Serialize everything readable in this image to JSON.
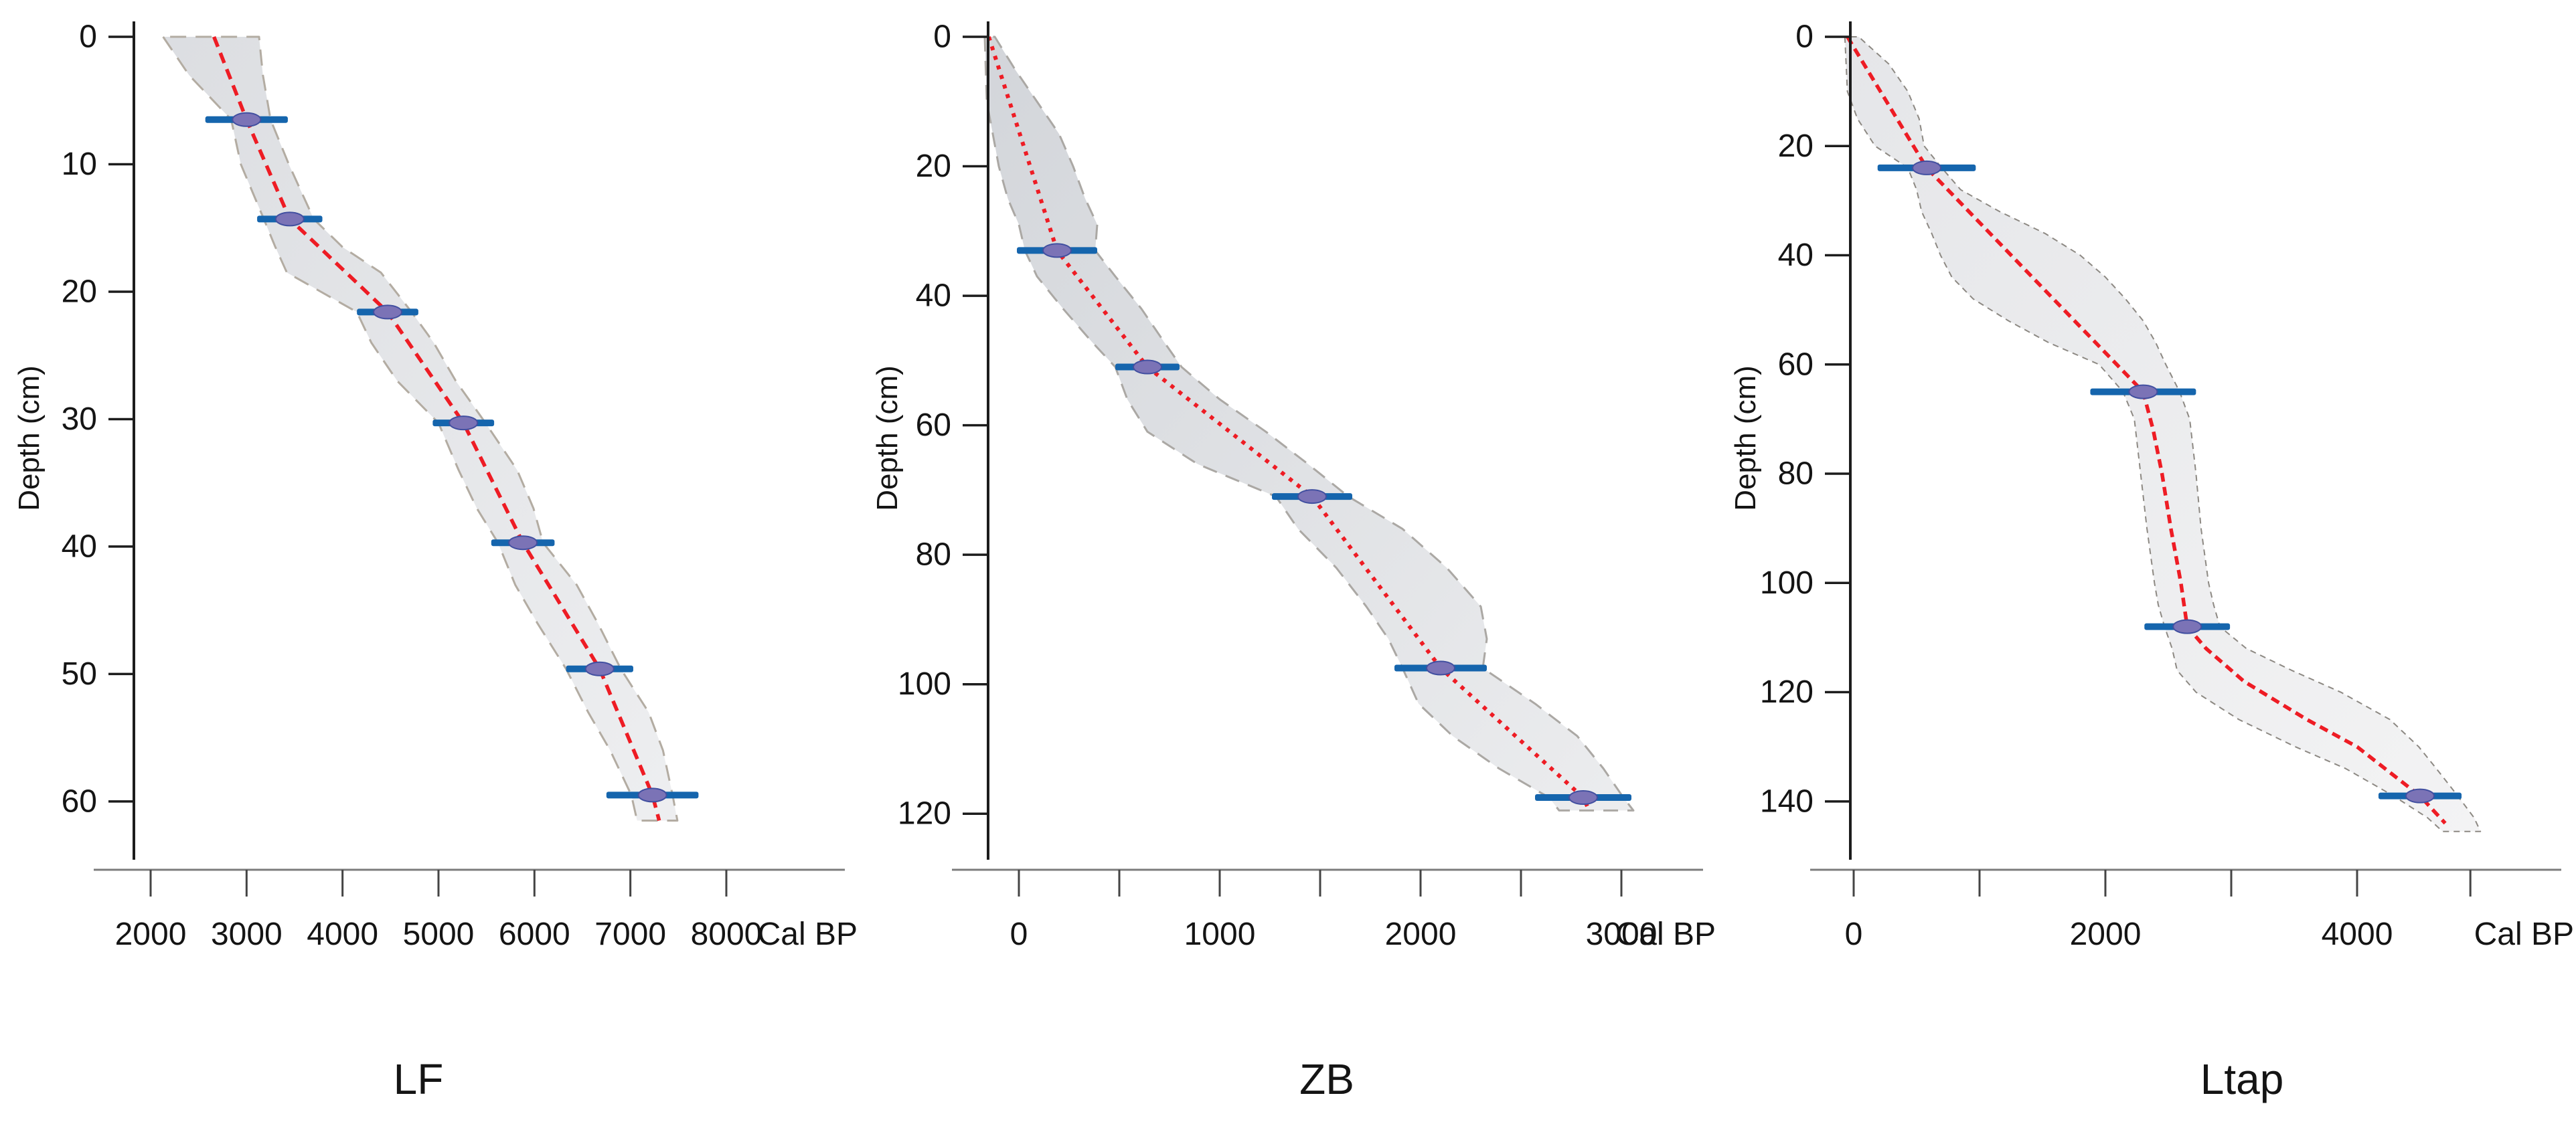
{
  "figure": {
    "ylabel": "Depth (cm)",
    "x_unit_label": "Cal BP"
  },
  "colors": {
    "model_line": "#ee1c24",
    "date_bar": "#1565ad",
    "marker_fill": "#7b73b6",
    "marker_stroke": "#414fa0",
    "axis": "#1c1c1c",
    "x_axis_line": "#7c7c7c",
    "text": "#141414"
  },
  "chart_data": [
    {
      "type": "line",
      "title": "LF",
      "ylabel": "Depth (cm)",
      "xlabel": "Cal BP",
      "xlim": [
        1800,
        8600
      ],
      "ylim": [
        0,
        63
      ],
      "y_ticks": [
        0,
        10,
        20,
        30,
        40,
        50,
        60
      ],
      "x_ticks": [
        {
          "v": 2000,
          "label": "2000"
        },
        {
          "v": 3000,
          "label": "3000"
        },
        {
          "v": 4000,
          "label": "4000"
        },
        {
          "v": 5000,
          "label": "5000"
        },
        {
          "v": 6000,
          "label": "6000"
        },
        {
          "v": 7000,
          "label": "7000"
        },
        {
          "v": 8000,
          "label": "8000"
        }
      ],
      "style": {
        "model_dash": "16 10",
        "model_width": 5.5,
        "border_color": "#b3aca2",
        "border_dash": "24 14",
        "border_width": 3,
        "fill_from": "#d9dbdf",
        "fill_to": "#ecedef"
      },
      "model_points": [
        [
          2660,
          0
        ],
        [
          3000,
          6.5
        ],
        [
          3450,
          14.3
        ],
        [
          4470,
          21.6
        ],
        [
          5260,
          30.3
        ],
        [
          5880,
          39.7
        ],
        [
          6680,
          49.6
        ],
        [
          7230,
          59.5
        ],
        [
          7300,
          61.5
        ]
      ],
      "envelope": {
        "depth": [
          0,
          3,
          6.5,
          10,
          14.3,
          16.5,
          18.5,
          21.6,
          24,
          27,
          30.3,
          34,
          37,
          39.7,
          43,
          46,
          49.6,
          53,
          56,
          59.5,
          61.5
        ],
        "age_min": [
          2130,
          2400,
          2840,
          2940,
          3180,
          3300,
          3420,
          4150,
          4300,
          4570,
          5000,
          5210,
          5400,
          5620,
          5800,
          6030,
          6330,
          6560,
          6790,
          7010,
          7070
        ],
        "age_max": [
          3130,
          3170,
          3250,
          3440,
          3700,
          4000,
          4400,
          4720,
          4950,
          5180,
          5490,
          5820,
          5990,
          6090,
          6440,
          6660,
          6900,
          7190,
          7340,
          7440,
          7490
        ]
      },
      "dates": [
        {
          "depth": 6.5,
          "age": 3000,
          "err": 430
        },
        {
          "depth": 14.3,
          "age": 3450,
          "err": 340
        },
        {
          "depth": 21.6,
          "age": 4470,
          "err": 320
        },
        {
          "depth": 30.3,
          "age": 5260,
          "err": 320
        },
        {
          "depth": 39.7,
          "age": 5880,
          "err": 330
        },
        {
          "depth": 49.6,
          "age": 6680,
          "err": 350
        },
        {
          "depth": 59.5,
          "age": 7230,
          "err": 480
        }
      ]
    },
    {
      "type": "line",
      "title": "ZB",
      "ylabel": "Depth (cm)",
      "xlabel": "Cal BP",
      "xlim": [
        -400,
        3300
      ],
      "ylim": [
        0,
        124
      ],
      "y_ticks": [
        0,
        20,
        40,
        60,
        80,
        100,
        120
      ],
      "x_ticks": [
        {
          "v": 0,
          "label": "0"
        },
        {
          "v": 500,
          "label": ""
        },
        {
          "v": 1000,
          "label": "1000"
        },
        {
          "v": 1500,
          "label": ""
        },
        {
          "v": 2000,
          "label": "2000"
        },
        {
          "v": 2500,
          "label": ""
        },
        {
          "v": 3000,
          "label": "3000"
        }
      ],
      "style": {
        "model_dash": "6 9",
        "model_width": 6,
        "border_color": "#aba8a4",
        "border_dash": "22 14",
        "border_width": 3,
        "fill_from": "#cfd2d7",
        "fill_to": "#eaebed"
      },
      "model_points": [
        [
          -150,
          0
        ],
        [
          190,
          33
        ],
        [
          640,
          51
        ],
        [
          1460,
          71
        ],
        [
          2100,
          97.5
        ],
        [
          2810,
          117.5
        ],
        [
          2840,
          119.5
        ]
      ],
      "envelope": {
        "depth": [
          0,
          5,
          10,
          15,
          20,
          25,
          29,
          33,
          37,
          42,
          47,
          51,
          56,
          61,
          66,
          71,
          76,
          82,
          88,
          93,
          97.5,
          103,
          108,
          113,
          117.5,
          119.5
        ],
        "age_min": [
          -170,
          -165,
          -160,
          -130,
          -100,
          -55,
          0,
          30,
          90,
          220,
          360,
          480,
          540,
          640,
          890,
          1280,
          1390,
          1580,
          1730,
          1840,
          1910,
          1990,
          2160,
          2390,
          2640,
          2690
        ],
        "age_max": [
          -120,
          -20,
          90,
          200,
          270,
          330,
          390,
          380,
          480,
          610,
          720,
          810,
          1000,
          1230,
          1440,
          1640,
          1910,
          2130,
          2300,
          2330,
          2310,
          2570,
          2780,
          2910,
          3010,
          3060
        ]
      },
      "dates": [
        {
          "depth": 33,
          "age": 190,
          "err": 200
        },
        {
          "depth": 51,
          "age": 640,
          "err": 160
        },
        {
          "depth": 71,
          "age": 1460,
          "err": 200
        },
        {
          "depth": 97.5,
          "age": 2100,
          "err": 230
        },
        {
          "depth": 117.5,
          "age": 2810,
          "err": 240
        }
      ]
    },
    {
      "type": "line",
      "title": "Ltap",
      "ylabel": "Depth (cm)",
      "xlabel": "Cal BP",
      "xlim": [
        -400,
        5100
      ],
      "ylim": [
        0,
        147
      ],
      "y_ticks": [
        0,
        20,
        40,
        60,
        80,
        100,
        120,
        140
      ],
      "x_ticks": [
        {
          "v": 0,
          "label": "0"
        },
        {
          "v": 1000,
          "label": ""
        },
        {
          "v": 2000,
          "label": "2000"
        },
        {
          "v": 3000,
          "label": ""
        },
        {
          "v": 4000,
          "label": "4000"
        },
        {
          "v": 4900,
          "label": ""
        }
      ],
      "style": {
        "model_dash": "13 8",
        "model_width": 5.5,
        "border_color": "#8d8983",
        "border_dash": "9 7",
        "border_width": 2,
        "fill_from": "#e3e4e7",
        "fill_to": "#f2f2f3"
      },
      "model_points": [
        [
          -50,
          0
        ],
        [
          580,
          24
        ],
        [
          2300,
          65
        ],
        [
          2380,
          72
        ],
        [
          2450,
          80
        ],
        [
          2520,
          90
        ],
        [
          2600,
          100
        ],
        [
          2650,
          108
        ],
        [
          2800,
          112
        ],
        [
          3100,
          118
        ],
        [
          3600,
          125
        ],
        [
          4000,
          130
        ],
        [
          4500,
          139
        ],
        [
          4700,
          144
        ]
      ],
      "envelope": {
        "depth": [
          0,
          5,
          10,
          15,
          20,
          24,
          28,
          32,
          36,
          40,
          44,
          48,
          52,
          56,
          60,
          65,
          70,
          80,
          90,
          100,
          104,
          108,
          112,
          116,
          120,
          125,
          130,
          134,
          139,
          143,
          145.5
        ],
        "age_min": [
          -70,
          -60,
          -50,
          30,
          170,
          430,
          500,
          540,
          620,
          690,
          780,
          950,
          1230,
          1550,
          1950,
          2140,
          2230,
          2280,
          2330,
          2390,
          2420,
          2470,
          2530,
          2570,
          2720,
          3060,
          3510,
          3910,
          4290,
          4560,
          4680
        ],
        "age_max": [
          40,
          280,
          430,
          520,
          560,
          700,
          850,
          1160,
          1520,
          1800,
          2000,
          2160,
          2300,
          2400,
          2480,
          2590,
          2670,
          2720,
          2760,
          2820,
          2860,
          2910,
          3120,
          3480,
          3870,
          4260,
          4490,
          4630,
          4800,
          4930,
          4980
        ]
      },
      "dates": [
        {
          "depth": 24,
          "age": 580,
          "err": 390
        },
        {
          "depth": 65,
          "age": 2300,
          "err": 420
        },
        {
          "depth": 108,
          "age": 2650,
          "err": 340
        },
        {
          "depth": 139,
          "age": 4500,
          "err": 330
        }
      ]
    }
  ]
}
